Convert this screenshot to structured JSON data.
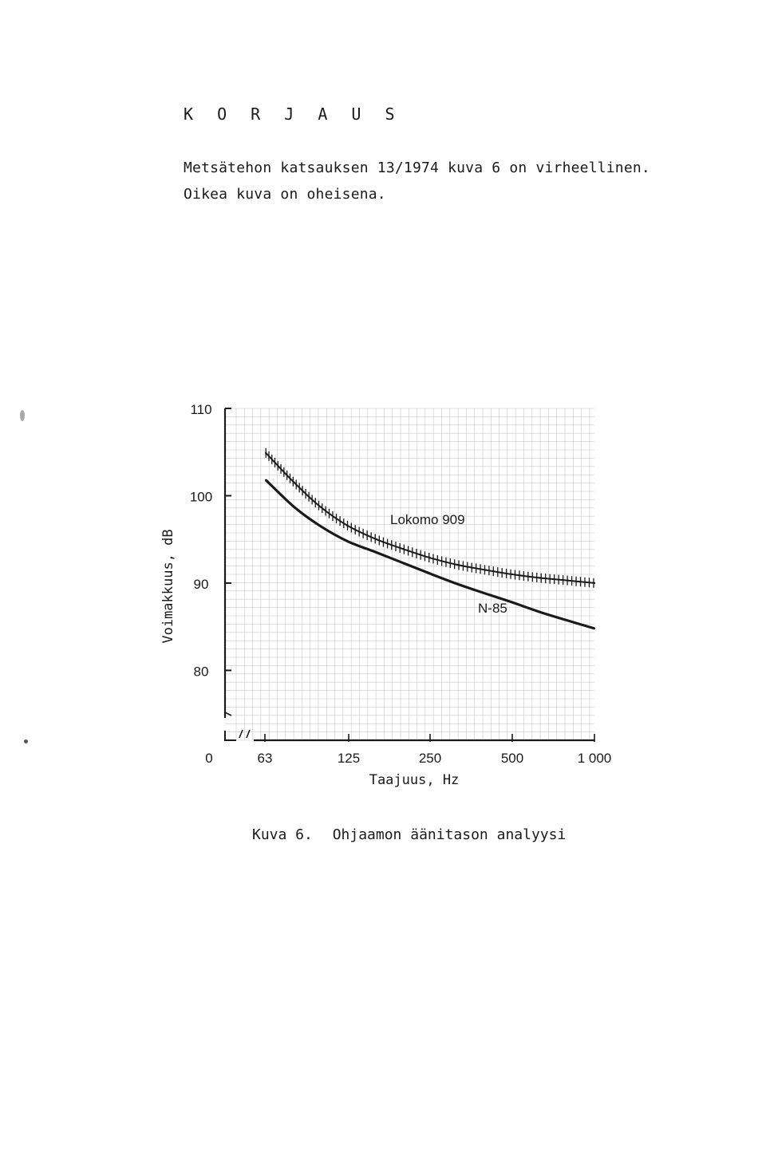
{
  "heading": "K O R J A U S",
  "intro": {
    "line1": "Metsätehon katsauksen 13/1974 kuva 6 on virheellinen.",
    "line2": "Oikea kuva on oheisena."
  },
  "chart_data": {
    "type": "line",
    "xlabel": "Taajuus, Hz",
    "ylabel": "Voimakkuus, dB",
    "x_tick_labels": [
      "0",
      "63",
      "125",
      "250",
      "500",
      "1 000"
    ],
    "y_tick_labels": [
      "110",
      "100",
      "90",
      "80"
    ],
    "y_ticks": [
      110,
      100,
      90,
      80
    ],
    "x": [
      63,
      80,
      100,
      125,
      160,
      200,
      250,
      315,
      400,
      500,
      630,
      800,
      1000
    ],
    "ylim": [
      72,
      110
    ],
    "xscale": "log (octave)",
    "grid": true,
    "series": [
      {
        "name": "Lokomo 909",
        "style": "hatched",
        "values": [
          104.9,
          101.5,
          98.7,
          96.6,
          95.0,
          93.9,
          92.9,
          92.1,
          91.5,
          91.0,
          90.6,
          90.3,
          90.0
        ]
      },
      {
        "name": "N-85",
        "style": "solid",
        "values": [
          101.8,
          98.7,
          96.5,
          94.8,
          93.5,
          92.3,
          91.1,
          89.9,
          88.8,
          87.8,
          86.7,
          85.7,
          84.8
        ]
      }
    ],
    "colors": {
      "ink": "#1a1a1a",
      "grid": "#c8c8c8"
    }
  },
  "caption": {
    "figure": "Kuva 6.",
    "title": "Ohjaamon äänitason analyysi"
  }
}
